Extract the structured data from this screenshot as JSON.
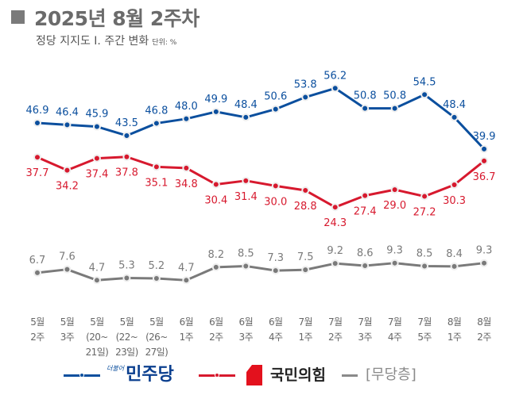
{
  "header": {
    "title": "2025년 8월 2주차",
    "subtitle": "정당 지지도 Ⅰ. 주간 변화",
    "unit": "단위: %"
  },
  "chart_data": {
    "type": "line",
    "categories": [
      [
        "5월",
        "2주"
      ],
      [
        "5월",
        "3주"
      ],
      [
        "5월",
        "(20~",
        "21일)"
      ],
      [
        "5월",
        "(22~",
        "23일)"
      ],
      [
        "5월",
        "(26~",
        "27일)"
      ],
      [
        "6월",
        "1주"
      ],
      [
        "6월",
        "2주"
      ],
      [
        "6월",
        "3주"
      ],
      [
        "6월",
        "4주"
      ],
      [
        "7월",
        "1주"
      ],
      [
        "7월",
        "2주"
      ],
      [
        "7월",
        "3주"
      ],
      [
        "7월",
        "4주"
      ],
      [
        "7월",
        "5주"
      ],
      [
        "8월",
        "1주"
      ],
      [
        "8월",
        "2주"
      ]
    ],
    "series": [
      {
        "name": "민주당",
        "color": "#0b4f9e",
        "label_pos": "above",
        "values": [
          46.9,
          46.4,
          45.9,
          43.5,
          46.8,
          48.0,
          49.9,
          48.4,
          50.6,
          53.8,
          56.2,
          50.8,
          50.8,
          54.5,
          48.4,
          39.9
        ]
      },
      {
        "name": "국민의힘",
        "color": "#d7192e",
        "label_pos": "below",
        "values": [
          37.7,
          34.2,
          37.4,
          37.8,
          35.1,
          34.8,
          30.4,
          31.4,
          30.0,
          28.8,
          24.3,
          27.4,
          29.0,
          27.2,
          30.3,
          36.7
        ]
      },
      {
        "name": "[무당층]",
        "color": "#7a7a7a",
        "label_pos": "above",
        "values": [
          6.7,
          7.6,
          4.7,
          5.3,
          5.2,
          4.7,
          8.2,
          8.5,
          7.3,
          7.5,
          9.2,
          8.6,
          9.3,
          8.5,
          8.4,
          9.3
        ]
      }
    ],
    "grid": false,
    "legend": "bottom",
    "logo_text": "더불어"
  }
}
